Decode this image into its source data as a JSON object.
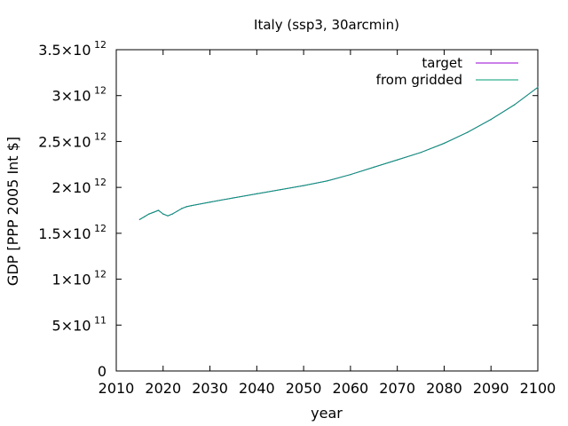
{
  "chart_data": {
    "type": "line",
    "title": "Italy (ssp3, 30arcmin)",
    "xlabel": "year",
    "ylabel": "GDP [PPP 2005 Int $]",
    "xlim": [
      2010,
      2100
    ],
    "ylim": [
      0,
      3500000000000.0
    ],
    "grid": false,
    "legend_position": "top-right",
    "x_ticks": [
      "2010",
      "2020",
      "2030",
      "2040",
      "2050",
      "2060",
      "2070",
      "2080",
      "2090",
      "2100"
    ],
    "y_ticks": [
      {
        "value": 0,
        "mantissa": "0",
        "exp": ""
      },
      {
        "value": 500000000000.0,
        "mantissa": "5×10",
        "exp": "11"
      },
      {
        "value": 1000000000000.0,
        "mantissa": "1×10",
        "exp": "12"
      },
      {
        "value": 1500000000000.0,
        "mantissa": "1.5×10",
        "exp": "12"
      },
      {
        "value": 2000000000000.0,
        "mantissa": "2×10",
        "exp": "12"
      },
      {
        "value": 2500000000000.0,
        "mantissa": "2.5×10",
        "exp": "12"
      },
      {
        "value": 3000000000000.0,
        "mantissa": "3×10",
        "exp": "12"
      },
      {
        "value": 3500000000000.0,
        "mantissa": "3.5×10",
        "exp": "12"
      }
    ],
    "x": [
      2015,
      2016,
      2017,
      2018,
      2019,
      2020,
      2021,
      2022,
      2023,
      2024,
      2025,
      2026,
      2030,
      2035,
      2040,
      2045,
      2050,
      2055,
      2060,
      2065,
      2070,
      2075,
      2080,
      2085,
      2090,
      2095,
      2100
    ],
    "series": [
      {
        "name": "target",
        "color": "#9400d3",
        "values": [
          1650000000000.0,
          1680000000000.0,
          1710000000000.0,
          1730000000000.0,
          1750000000000.0,
          1710000000000.0,
          1690000000000.0,
          1710000000000.0,
          1740000000000.0,
          1770000000000.0,
          1790000000000.0,
          1800000000000.0,
          1840000000000.0,
          1885000000000.0,
          1930000000000.0,
          1975000000000.0,
          2020000000000.0,
          2070000000000.0,
          2140000000000.0,
          2220000000000.0,
          2300000000000.0,
          2380000000000.0,
          2480000000000.0,
          2600000000000.0,
          2740000000000.0,
          2900000000000.0,
          3090000000000.0
        ]
      },
      {
        "name": "from gridded",
        "color": "#009e73",
        "values": [
          1650000000000.0,
          1680000000000.0,
          1710000000000.0,
          1730000000000.0,
          1750000000000.0,
          1710000000000.0,
          1690000000000.0,
          1710000000000.0,
          1740000000000.0,
          1770000000000.0,
          1790000000000.0,
          1800000000000.0,
          1840000000000.0,
          1885000000000.0,
          1930000000000.0,
          1975000000000.0,
          2020000000000.0,
          2070000000000.0,
          2140000000000.0,
          2220000000000.0,
          2300000000000.0,
          2380000000000.0,
          2480000000000.0,
          2600000000000.0,
          2740000000000.0,
          2900000000000.0,
          3090000000000.0
        ]
      }
    ]
  }
}
